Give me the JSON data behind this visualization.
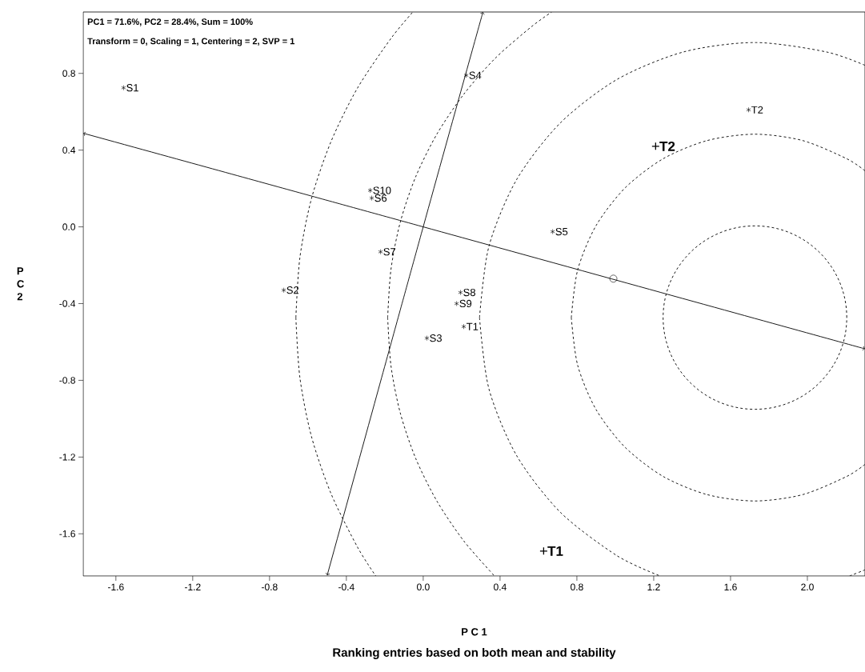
{
  "chart_data": {
    "type": "scatter",
    "title": "Ranking entries based on both mean and stability",
    "xlabel": "P C 1",
    "ylabel": "P C 2",
    "xlim": [
      -1.77,
      2.3
    ],
    "ylim": [
      -1.82,
      1.12
    ],
    "xticks": [
      -1.6,
      -1.2,
      -0.8,
      -0.4,
      {
        "value": 0,
        "label": "0.0"
      },
      0.4,
      0.8,
      1.2,
      1.6,
      {
        "value": 2,
        "label": "2.0"
      }
    ],
    "yticks": [
      -1.6,
      -1.2,
      -0.8,
      -0.4,
      {
        "value": 0,
        "label": "0.0"
      },
      0.4,
      0.8
    ],
    "series": [
      {
        "type": "line",
        "color": "#000000",
        "line_style": "dashed",
        "x": [
          0.771,
          0.804,
          0.899,
          1.051,
          1.249,
          1.479,
          1.727,
          1.975,
          2.205,
          2.3
        ],
        "values": [
          -0.473,
          -0.225,
          0.005,
          0.203,
          0.355,
          0.45,
          0.483,
          0.45,
          0.355,
          0.292
        ]
      },
      {
        "type": "line",
        "color": "#000000",
        "line_style": "dashed",
        "x": [
          0.771,
          0.804,
          0.899,
          1.051,
          1.249,
          1.479,
          1.727,
          1.975,
          2.205,
          2.3
        ],
        "values": [
          -0.473,
          -0.721,
          -0.951,
          -1.149,
          -1.301,
          -1.396,
          -1.429,
          -1.396,
          -1.301,
          -1.238
        ]
      },
      {
        "type": "line",
        "color": "#000000",
        "line_style": "dashed",
        "x": [
          0.293,
          0.342,
          0.485,
          0.713,
          1.01,
          1.356,
          1.727,
          2.098,
          2.3
        ],
        "values": [
          -0.473,
          -0.102,
          0.244,
          0.541,
          0.769,
          0.912,
          0.961,
          0.912,
          0.842
        ]
      },
      {
        "type": "line",
        "color": "#000000",
        "line_style": "dashed",
        "x": [
          0.293,
          0.342,
          0.485,
          0.713,
          1.01,
          1.234,
          1.727,
          2.22,
          2.3
        ],
        "values": [
          -0.473,
          -0.844,
          -1.19,
          -1.487,
          -1.715,
          -1.82,
          null,
          -1.82,
          -1.788
        ]
      },
      {
        "type": "line",
        "color": "#000000",
        "line_style": "dashed",
        "x": [
          -0.185,
          -0.168,
          -0.12,
          -0.04,
          0.071,
          0.211,
          0.375,
          0.563,
          0.669
        ],
        "values": [
          -0.473,
          -0.223,
          0.022,
          0.259,
          0.483,
          0.691,
          0.879,
          1.043,
          1.12
        ]
      },
      {
        "type": "line",
        "color": "#000000",
        "line_style": "dashed",
        "x": [
          -0.185,
          -0.168,
          -0.12,
          -0.04,
          0.071,
          0.211,
          0.371
        ],
        "values": [
          -0.473,
          -0.723,
          -0.968,
          -1.205,
          -1.429,
          -1.637,
          -1.82
        ]
      },
      {
        "type": "line",
        "color": "#000000",
        "line_style": "dashed",
        "x": [
          -0.663,
          -0.642,
          -0.582,
          -0.481,
          -0.343,
          -0.168,
          -0.054
        ],
        "values": [
          -0.473,
          -0.16,
          0.146,
          0.442,
          0.722,
          0.982,
          1.12
        ]
      },
      {
        "type": "line",
        "color": "#000000",
        "line_style": "dashed",
        "x": [
          -0.663,
          -0.642,
          -0.582,
          -0.481,
          -0.343,
          -0.247
        ],
        "values": [
          -0.473,
          -0.786,
          -1.092,
          -1.388,
          -1.668,
          -1.82
        ]
      },
      {
        "type": "line",
        "color": "#000000",
        "line_style": "solid",
        "x": [
          -1.77,
          0,
          2.3
        ],
        "values": [
          0.488,
          0,
          -0.636
        ]
      },
      {
        "type": "line",
        "color": "#000000",
        "line_style": "solid",
        "x": [
          -0.5,
          0,
          0.311
        ],
        "values": [
          -1.817,
          0,
          1.12
        ]
      },
      {
        "color": "#000000",
        "marker": "circle",
        "x": [
          0.99
        ],
        "values": [
          -0.27
        ]
      },
      {
        "color": "#000000",
        "x": [
          -1.56,
          0.224,
          -0.276,
          -0.268,
          -0.222,
          -0.726,
          0.194,
          0.174,
          0.211,
          0.019,
          0.674,
          1.694
        ],
        "values": [
          0.725,
          0.79,
          0.19,
          0.15,
          -0.13,
          -0.33,
          -0.342,
          -0.4,
          -0.52,
          -0.58,
          -0.025,
          0.61
        ],
        "value_labels": [
          "S1",
          "S4",
          "S10",
          "S6",
          "S7",
          "S2",
          "S8",
          "S9",
          "T1",
          "S3",
          "S5",
          "T2"
        ]
      },
      {
        "color": "#000000",
        "marker": "cross",
        "x": [
          1.21,
          0.627
        ],
        "values": [
          0.42,
          -1.69
        ],
        "value_labels": [
          "T2",
          "T1"
        ]
      }
    ],
    "annotations": [
      "PC1 = 71.6%, PC2 = 28.4%, Sum = 100%",
      "Transform = 0, Scaling = 1, Centering = 2, SVP = 1"
    ]
  }
}
